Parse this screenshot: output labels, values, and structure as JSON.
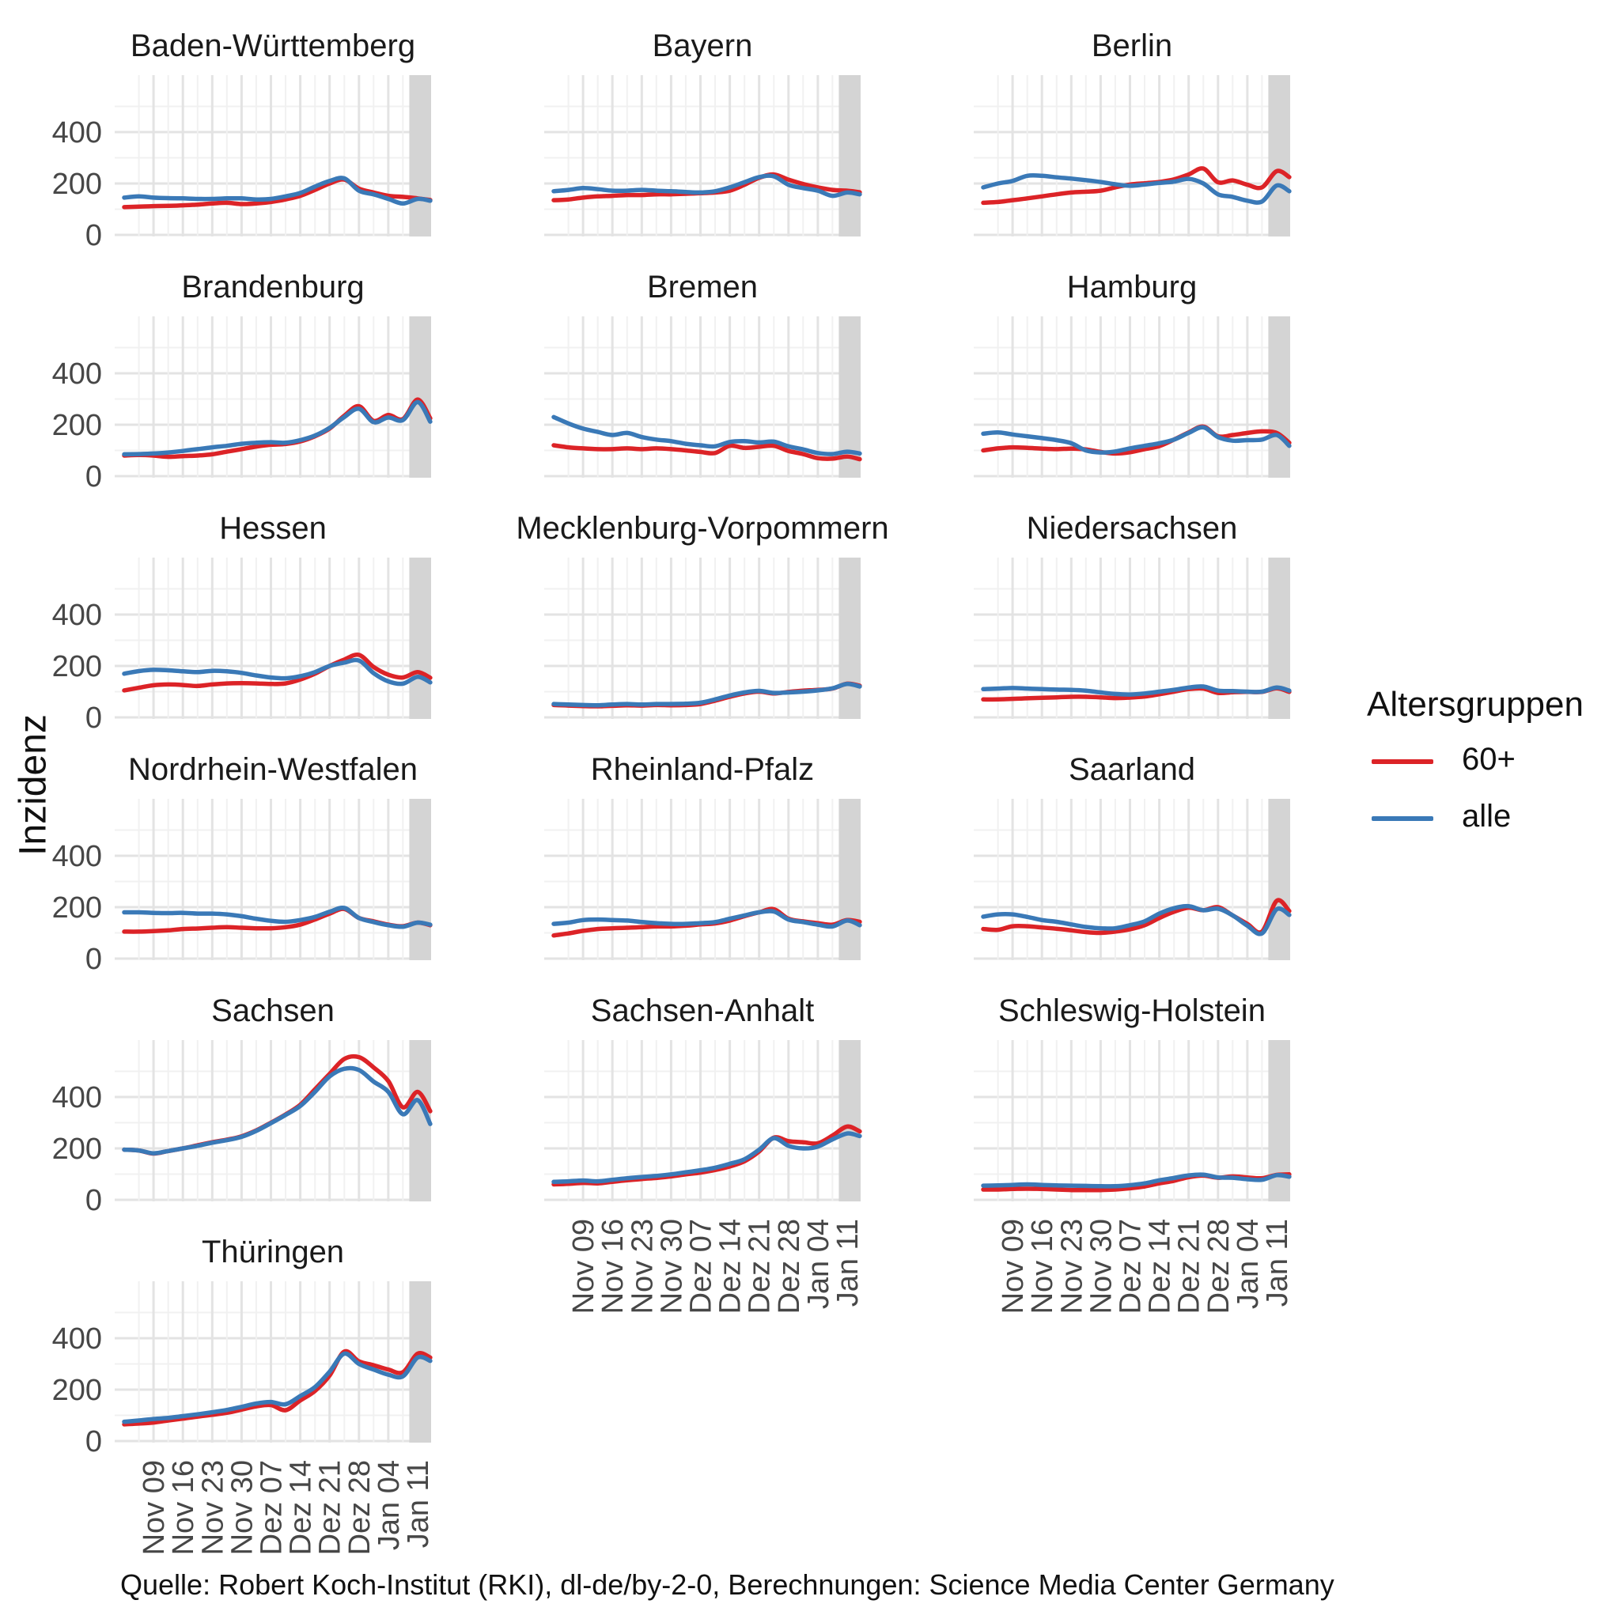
{
  "figure": {
    "y_axis_label": "Inzidenz",
    "caption": "Quelle: Robert Koch-Institut (RKI), dl-de/by-2-0, Berechnungen: Science Media Center Germany",
    "legend": {
      "title": "Altersgruppen",
      "entries": [
        {
          "label": "60+",
          "color": "#dc2327"
        },
        {
          "label": "alle",
          "color": "#3a79b7"
        }
      ]
    }
  },
  "chart_data": {
    "type": "line",
    "title": "",
    "ylabel": "Inzidenz",
    "facet_field": "Bundesland",
    "legend_title": "Altersgruppen",
    "legend_position": "right",
    "grid": "on",
    "ylim": [
      0,
      590
    ],
    "y_ticks": [
      0,
      200,
      400
    ],
    "x_days_from_nov02": [
      0,
      3.5,
      7,
      10.5,
      14,
      17.5,
      21,
      24.5,
      28,
      31.5,
      35,
      38.5,
      42,
      45.5,
      49,
      52.5,
      56,
      59.5,
      63,
      66.5,
      70,
      73
    ],
    "x_ticks": [
      {
        "day": 7,
        "label": "Nov 09"
      },
      {
        "day": 14,
        "label": "Nov 16"
      },
      {
        "day": 21,
        "label": "Nov 23"
      },
      {
        "day": 28,
        "label": "Nov 30"
      },
      {
        "day": 35,
        "label": "Dez 07"
      },
      {
        "day": 42,
        "label": "Dez 14"
      },
      {
        "day": 49,
        "label": "Dez 21"
      },
      {
        "day": 56,
        "label": "Dez 28"
      },
      {
        "day": 63,
        "label": "Jan 04"
      },
      {
        "day": 70,
        "label": "Jan 11"
      }
    ],
    "series_colors": {
      "60+": "#dc2327",
      "alle": "#3a79b7"
    },
    "highlight_band": {
      "from_day": 68,
      "to_day": 73.5,
      "color": "#d4d4d4"
    },
    "facets": [
      {
        "title": "Baden-Württemberg",
        "series": {
          "alle": [
            145,
            150,
            145,
            143,
            142,
            140,
            140,
            142,
            142,
            138,
            140,
            150,
            163,
            188,
            210,
            220,
            172,
            158,
            140,
            122,
            140,
            133
          ],
          "60+": [
            108,
            110,
            112,
            113,
            115,
            118,
            122,
            125,
            120,
            122,
            128,
            138,
            152,
            175,
            200,
            215,
            180,
            165,
            152,
            148,
            142,
            136
          ]
        }
      },
      {
        "title": "Bayern",
        "series": {
          "alle": [
            170,
            175,
            182,
            178,
            172,
            172,
            175,
            172,
            170,
            167,
            165,
            170,
            185,
            205,
            225,
            228,
            195,
            182,
            172,
            152,
            165,
            158
          ],
          "60+": [
            135,
            138,
            145,
            150,
            152,
            155,
            155,
            158,
            158,
            160,
            162,
            165,
            172,
            195,
            222,
            235,
            215,
            198,
            185,
            175,
            172,
            166
          ]
        }
      },
      {
        "title": "Berlin",
        "series": {
          "alle": [
            185,
            200,
            210,
            230,
            230,
            224,
            219,
            213,
            206,
            197,
            191,
            196,
            202,
            207,
            218,
            200,
            158,
            148,
            133,
            130,
            192,
            170
          ],
          "60+": [
            125,
            128,
            135,
            142,
            150,
            158,
            165,
            168,
            172,
            185,
            196,
            201,
            206,
            216,
            235,
            258,
            205,
            212,
            195,
            185,
            248,
            225
          ]
        }
      },
      {
        "title": "Brandenburg",
        "series": {
          "alle": [
            85,
            86,
            88,
            92,
            98,
            105,
            112,
            118,
            126,
            130,
            132,
            130,
            140,
            158,
            188,
            230,
            262,
            210,
            228,
            218,
            288,
            212
          ],
          "60+": [
            80,
            82,
            80,
            75,
            78,
            80,
            85,
            95,
            105,
            115,
            122,
            125,
            135,
            155,
            185,
            235,
            272,
            215,
            238,
            222,
            298,
            225
          ]
        }
      },
      {
        "title": "Bremen",
        "series": {
          "alle": [
            230,
            205,
            185,
            172,
            160,
            168,
            152,
            142,
            136,
            126,
            120,
            116,
            133,
            136,
            131,
            134,
            116,
            104,
            90,
            86,
            95,
            88
          ],
          "60+": [
            120,
            112,
            108,
            105,
            105,
            108,
            105,
            108,
            105,
            100,
            94,
            90,
            118,
            110,
            114,
            118,
            98,
            86,
            70,
            68,
            76,
            66
          ]
        }
      },
      {
        "title": "Hamburg",
        "series": {
          "alle": [
            165,
            170,
            162,
            155,
            148,
            140,
            128,
            100,
            92,
            96,
            108,
            118,
            128,
            142,
            168,
            190,
            152,
            138,
            140,
            142,
            160,
            118
          ],
          "60+": [
            100,
            108,
            112,
            110,
            107,
            105,
            107,
            104,
            94,
            88,
            93,
            105,
            117,
            142,
            170,
            193,
            155,
            160,
            168,
            174,
            168,
            130
          ]
        }
      },
      {
        "title": "Hessen",
        "series": {
          "alle": [
            170,
            180,
            185,
            183,
            179,
            176,
            181,
            179,
            173,
            163,
            155,
            152,
            160,
            176,
            200,
            213,
            221,
            172,
            140,
            131,
            158,
            136
          ],
          "60+": [
            105,
            115,
            125,
            128,
            126,
            122,
            128,
            132,
            133,
            132,
            130,
            132,
            147,
            170,
            200,
            225,
            243,
            196,
            166,
            155,
            176,
            154
          ]
        }
      },
      {
        "title": "Mecklenburg-Vorpommern",
        "series": {
          "alle": [
            52,
            50,
            48,
            47,
            50,
            52,
            50,
            52,
            52,
            53,
            57,
            70,
            85,
            97,
            103,
            95,
            97,
            100,
            105,
            113,
            130,
            120
          ],
          "60+": [
            48,
            46,
            44,
            43,
            45,
            47,
            46,
            48,
            47,
            48,
            52,
            65,
            80,
            93,
            100,
            93,
            99,
            104,
            107,
            112,
            131,
            123
          ]
        }
      },
      {
        "title": "Niedersachsen",
        "series": {
          "alle": [
            110,
            112,
            114,
            112,
            110,
            108,
            107,
            104,
            97,
            91,
            89,
            93,
            100,
            107,
            116,
            120,
            104,
            102,
            100,
            100,
            116,
            104
          ],
          "60+": [
            70,
            70,
            72,
            74,
            76,
            78,
            80,
            80,
            78,
            75,
            77,
            81,
            90,
            100,
            110,
            112,
            95,
            98,
            99,
            99,
            113,
            99
          ]
        }
      },
      {
        "title": "Nordrhein-Westfalen",
        "series": {
          "alle": [
            180,
            180,
            178,
            177,
            178,
            175,
            175,
            172,
            165,
            155,
            147,
            143,
            150,
            162,
            182,
            197,
            158,
            142,
            130,
            124,
            140,
            132
          ],
          "60+": [
            105,
            105,
            107,
            110,
            115,
            117,
            120,
            122,
            120,
            118,
            118,
            122,
            132,
            152,
            175,
            193,
            158,
            145,
            132,
            126,
            140,
            130
          ]
        }
      },
      {
        "title": "Rheinland-Pfalz",
        "series": {
          "alle": [
            135,
            140,
            150,
            152,
            150,
            148,
            142,
            138,
            135,
            135,
            138,
            142,
            155,
            168,
            180,
            183,
            152,
            142,
            132,
            125,
            148,
            130
          ],
          "60+": [
            90,
            98,
            108,
            115,
            118,
            120,
            122,
            125,
            125,
            128,
            133,
            137,
            148,
            165,
            180,
            192,
            155,
            145,
            138,
            132,
            150,
            143
          ]
        }
      },
      {
        "title": "Saarland",
        "series": {
          "alle": [
            163,
            172,
            172,
            162,
            150,
            143,
            133,
            123,
            118,
            118,
            130,
            145,
            175,
            196,
            204,
            188,
            194,
            168,
            128,
            98,
            192,
            170
          ],
          "60+": [
            115,
            112,
            126,
            126,
            121,
            116,
            110,
            103,
            100,
            105,
            114,
            130,
            158,
            182,
            198,
            188,
            200,
            168,
            135,
            105,
            225,
            185
          ]
        }
      },
      {
        "title": "Sachsen",
        "series": {
          "alle": [
            195,
            192,
            181,
            190,
            200,
            210,
            222,
            232,
            245,
            268,
            298,
            330,
            365,
            420,
            480,
            510,
            505,
            460,
            420,
            333,
            388,
            295
          ],
          "60+": [
            195,
            192,
            180,
            190,
            200,
            212,
            224,
            234,
            247,
            270,
            300,
            332,
            370,
            430,
            490,
            548,
            555,
            515,
            462,
            360,
            420,
            345
          ]
        }
      },
      {
        "title": "Sachsen-Anhalt",
        "series": {
          "alle": [
            70,
            72,
            75,
            72,
            78,
            84,
            89,
            93,
            99,
            107,
            115,
            125,
            140,
            158,
            195,
            240,
            210,
            200,
            207,
            235,
            258,
            248
          ],
          "60+": [
            60,
            62,
            66,
            64,
            70,
            76,
            81,
            85,
            91,
            99,
            106,
            116,
            130,
            150,
            188,
            242,
            228,
            224,
            220,
            250,
            285,
            266
          ]
        }
      },
      {
        "title": "Schleswig-Holstein",
        "series": {
          "alle": [
            55,
            56,
            58,
            60,
            58,
            56,
            55,
            54,
            53,
            53,
            57,
            64,
            76,
            85,
            95,
            98,
            87,
            86,
            80,
            78,
            96,
            90
          ],
          "60+": [
            40,
            40,
            42,
            43,
            42,
            40,
            38,
            38,
            38,
            40,
            45,
            52,
            64,
            74,
            88,
            94,
            86,
            91,
            87,
            84,
            97,
            99
          ]
        }
      },
      {
        "title": "Thüringen",
        "series": {
          "alle": [
            75,
            80,
            86,
            90,
            97,
            104,
            112,
            121,
            133,
            146,
            152,
            143,
            175,
            210,
            270,
            340,
            300,
            278,
            258,
            252,
            325,
            312
          ],
          "60+": [
            65,
            68,
            72,
            80,
            87,
            95,
            102,
            110,
            122,
            135,
            140,
            120,
            158,
            195,
            255,
            348,
            310,
            295,
            278,
            268,
            340,
            325
          ]
        }
      }
    ]
  }
}
